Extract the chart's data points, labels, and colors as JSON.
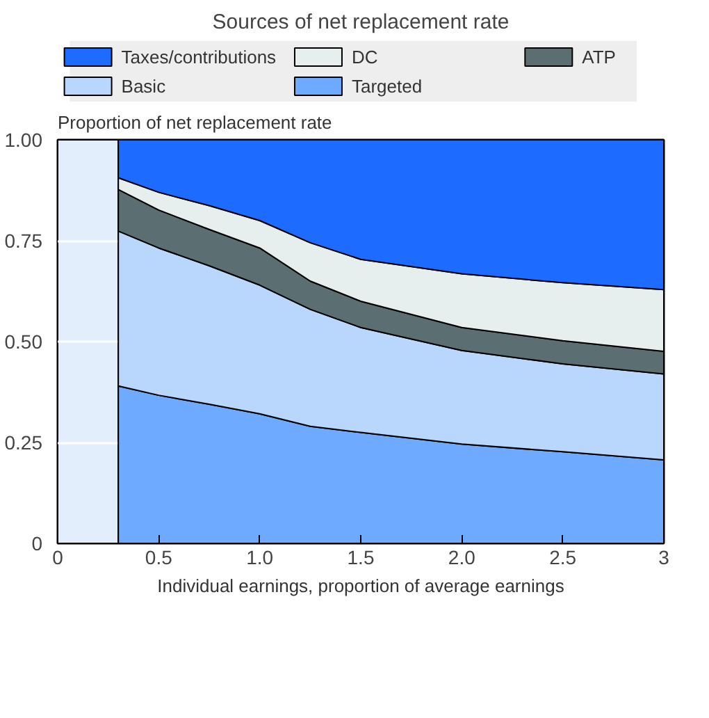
{
  "chart_data": {
    "type": "area",
    "title": "Sources of net replacement rate",
    "ylabel": "Proportion of net replacement rate",
    "xlabel": "Individual earnings, proportion of average earnings",
    "stacked": true,
    "x": [
      0.3,
      0.5,
      0.75,
      1.0,
      1.25,
      1.5,
      2.0,
      2.5,
      3.0
    ],
    "series": [
      {
        "name": "Targeted",
        "color": "#6eaaff",
        "values": [
          0.39,
          0.367,
          0.345,
          0.321,
          0.29,
          0.275,
          0.246,
          0.227,
          0.207
        ]
      },
      {
        "name": "Basic",
        "color": "#b9d6fc",
        "values": [
          0.384,
          0.365,
          0.343,
          0.319,
          0.29,
          0.26,
          0.232,
          0.218,
          0.213
        ]
      },
      {
        "name": "ATP",
        "color": "#5b6e72",
        "values": [
          0.103,
          0.094,
          0.09,
          0.092,
          0.07,
          0.065,
          0.057,
          0.057,
          0.056
        ]
      },
      {
        "name": "DC",
        "color": "#e6eeee",
        "values": [
          0.029,
          0.044,
          0.059,
          0.068,
          0.095,
          0.104,
          0.133,
          0.144,
          0.153
        ]
      },
      {
        "name": "Taxes/contributions",
        "color": "#1e6cff",
        "values": [
          0.094,
          0.13,
          0.163,
          0.2,
          0.255,
          0.296,
          0.332,
          0.354,
          0.371
        ]
      }
    ],
    "xlim": [
      0,
      3
    ],
    "ylim": [
      0,
      1
    ],
    "xticks": [
      0,
      0.5,
      {
        "value": 1,
        "label": "1.0"
      },
      1.5,
      {
        "value": 2,
        "label": "2.0"
      },
      2.5,
      3
    ],
    "yticks": [
      0,
      0.25,
      {
        "value": 0.5,
        "label": "0.50"
      },
      0.75,
      {
        "value": 1,
        "label": "1.00"
      }
    ],
    "bands": [
      {
        "axis": "x",
        "from": 0,
        "to": 0.3,
        "color": "#e3eefc"
      }
    ],
    "grid": "y",
    "legend": "top"
  }
}
